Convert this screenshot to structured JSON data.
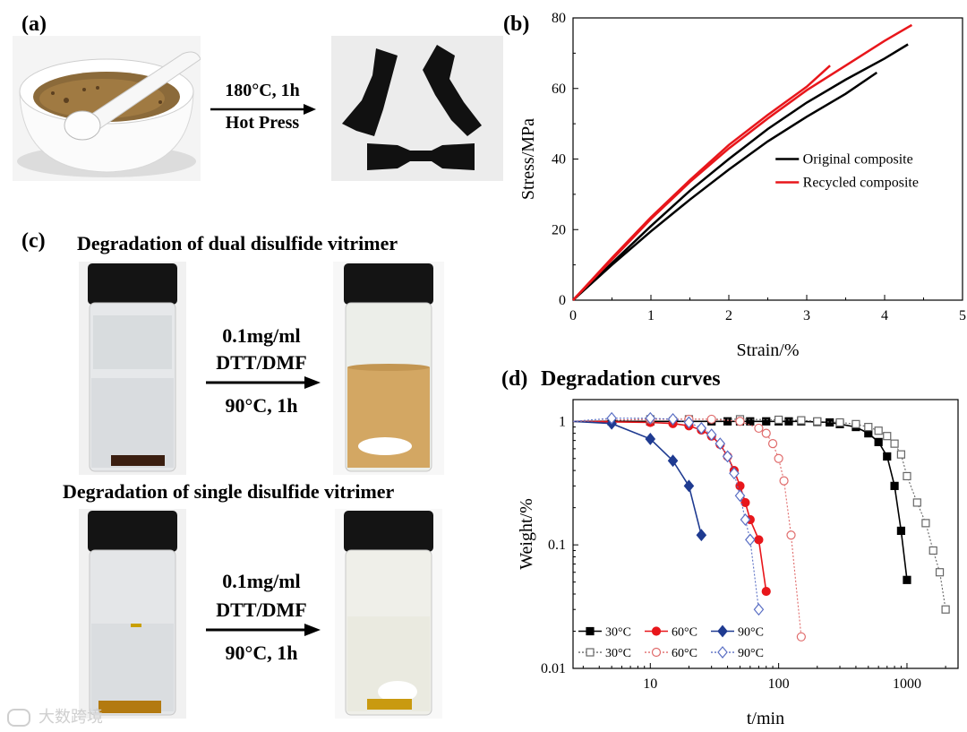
{
  "panel_a": {
    "label": "(a)",
    "condition": "180°C, 1h",
    "process": "Hot Press"
  },
  "panel_b": {
    "label": "(b)"
  },
  "panel_c": {
    "label": "(c)",
    "dual_title": "Degradation of dual disulfide vitrimer",
    "single_title": "Degradation of single disulfide vitrimer",
    "conditions_dual": [
      "0.1mg/ml",
      "DTT/DMF",
      "90°C, 1h"
    ],
    "conditions_single": [
      "0.1mg/ml",
      "DTT/DMF",
      "90°C, 1h"
    ]
  },
  "panel_d": {
    "label": "(d)",
    "title": "Degradation curves"
  },
  "watermark": "大数跨境",
  "colors": {
    "black": "#000000",
    "red": "#e8161b",
    "blue": "#1f3b91",
    "gray": "#666666",
    "pink": "#e06b6b",
    "lavender": "#5a6fc4"
  },
  "chart_data": [
    {
      "type": "line",
      "xlabel": "Strain/%",
      "ylabel": "Stress/MPa",
      "xlim": [
        0,
        5
      ],
      "ylim": [
        0,
        80
      ],
      "xticks": [
        0,
        1,
        2,
        3,
        4,
        5
      ],
      "yticks": [
        0,
        20,
        40,
        60,
        80
      ],
      "legend_position": "right",
      "series": [
        {
          "name": "Original composite",
          "color": "#000000",
          "x": [
            0,
            0.5,
            1,
            1.5,
            2,
            2.5,
            3,
            3.5,
            3.9
          ],
          "y": [
            0,
            10,
            19.5,
            28.5,
            37,
            45,
            52,
            58.5,
            64.5
          ]
        },
        {
          "name": "",
          "color": "#000000",
          "x": [
            0,
            0.5,
            1,
            1.5,
            2,
            2.5,
            3,
            3.5,
            4,
            4.3
          ],
          "y": [
            0,
            10.5,
            21,
            31,
            40,
            48.5,
            56,
            62.5,
            68.5,
            72.5
          ]
        },
        {
          "name": "Recycled composite",
          "color": "#e8161b",
          "x": [
            0,
            0.5,
            1,
            1.5,
            2,
            2.5,
            3,
            3.3
          ],
          "y": [
            0,
            12,
            23.5,
            34,
            44,
            52.5,
            60.5,
            66.5
          ]
        },
        {
          "name": "",
          "color": "#e8161b",
          "x": [
            0,
            0.5,
            1,
            1.5,
            2,
            2.5,
            3,
            3.5,
            4,
            4.35
          ],
          "y": [
            0,
            11.5,
            23,
            33.5,
            43,
            51.5,
            59.5,
            66.5,
            73.5,
            78
          ]
        }
      ]
    },
    {
      "type": "line",
      "title": "Degradation curves",
      "xlabel": "t/min",
      "ylabel": "Weight/%",
      "xscale": "log",
      "yscale": "log",
      "xlim": [
        2.5,
        2500
      ],
      "ylim": [
        0.01,
        1.5
      ],
      "xticks": [
        10,
        100,
        1000
      ],
      "yticks": [
        0.01,
        0.1,
        1
      ],
      "legend_position": "bottom-left",
      "series": [
        {
          "name": "30°C",
          "color": "#000000",
          "marker": "square-filled",
          "line": "solid",
          "x": [
            2.5,
            5,
            10,
            15,
            20,
            30,
            40,
            50,
            60,
            80,
            100,
            120,
            150,
            200,
            250,
            300,
            400,
            500,
            600,
            700,
            800,
            900,
            1000
          ],
          "y": [
            1,
            1,
            1,
            1,
            1,
            1,
            1,
            1,
            1,
            1,
            1,
            1,
            1,
            0.99,
            0.98,
            0.95,
            0.9,
            0.8,
            0.68,
            0.52,
            0.3,
            0.13,
            0.052
          ]
        },
        {
          "name": "60°C",
          "color": "#e8161b",
          "marker": "circle-filled",
          "line": "solid",
          "x": [
            2.5,
            10,
            15,
            20,
            25,
            30,
            35,
            40,
            45,
            50,
            55,
            60,
            70,
            80
          ],
          "y": [
            1,
            0.98,
            0.96,
            0.92,
            0.85,
            0.76,
            0.65,
            0.52,
            0.4,
            0.3,
            0.22,
            0.16,
            0.11,
            0.042
          ]
        },
        {
          "name": "90°C",
          "color": "#1f3b91",
          "marker": "diamond-filled",
          "line": "solid",
          "x": [
            2.5,
            5,
            10,
            15,
            20,
            25
          ],
          "y": [
            1,
            0.96,
            0.72,
            0.48,
            0.3,
            0.12
          ]
        },
        {
          "name": "30°C",
          "color": "#666666",
          "marker": "square-open",
          "line": "dotted",
          "x": [
            2.5,
            10,
            20,
            50,
            100,
            150,
            200,
            300,
            400,
            500,
            600,
            700,
            800,
            900,
            1000,
            1200,
            1400,
            1600,
            1800,
            2000
          ],
          "y": [
            1,
            1.04,
            1.04,
            1.04,
            1.03,
            1.02,
            1.0,
            0.98,
            0.95,
            0.9,
            0.84,
            0.76,
            0.66,
            0.54,
            0.36,
            0.22,
            0.15,
            0.09,
            0.06,
            0.03
          ]
        },
        {
          "name": "60°C",
          "color": "#e06b6b",
          "marker": "circle-open",
          "line": "dotted",
          "x": [
            2.5,
            10,
            20,
            30,
            50,
            70,
            80,
            90,
            100,
            110,
            125,
            150
          ],
          "y": [
            1,
            1.04,
            1.04,
            1.04,
            1.0,
            0.88,
            0.8,
            0.66,
            0.5,
            0.33,
            0.12,
            0.018
          ]
        },
        {
          "name": "90°C",
          "color": "#5a6fc4",
          "marker": "diamond-open",
          "line": "dotted",
          "x": [
            2.5,
            5,
            10,
            15,
            20,
            25,
            30,
            35,
            40,
            45,
            50,
            55,
            60,
            70
          ],
          "y": [
            1,
            1.06,
            1.06,
            1.04,
            0.98,
            0.88,
            0.78,
            0.66,
            0.52,
            0.38,
            0.25,
            0.16,
            0.11,
            0.03
          ]
        }
      ]
    }
  ]
}
